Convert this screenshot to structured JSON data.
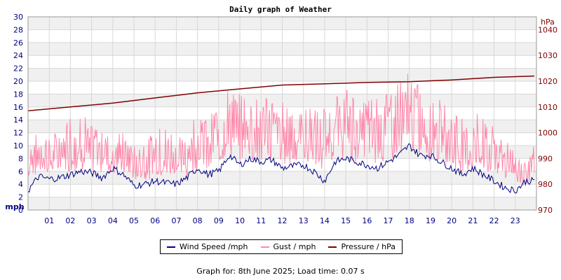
{
  "chart_data": {
    "type": "line",
    "title": "Daily graph of Weather",
    "x_ticks": [
      "01",
      "02",
      "03",
      "04",
      "05",
      "06",
      "07",
      "08",
      "09",
      "10",
      "11",
      "12",
      "13",
      "14",
      "15",
      "16",
      "17",
      "18",
      "19",
      "20",
      "21",
      "22",
      "23"
    ],
    "x_range_hours": [
      0,
      24
    ],
    "y_left": {
      "unit": "mph",
      "min": 0,
      "max": 30,
      "ticks": [
        0,
        2,
        4,
        6,
        8,
        10,
        12,
        14,
        16,
        18,
        20,
        22,
        24,
        26,
        28,
        30
      ],
      "color": "#000080"
    },
    "y_right": {
      "unit": "hPa",
      "min": 970,
      "max": 1045,
      "ticks": [
        970,
        980,
        990,
        1000,
        1010,
        1020,
        1030,
        1040
      ],
      "color": "#800000"
    },
    "grid": true,
    "legend_position": "bottom",
    "series": [
      {
        "name": "Wind Speed /mph",
        "axis": "left",
        "color": "#000080",
        "x": [
          0,
          0.5,
          1,
          1.5,
          2,
          2.5,
          3,
          3.5,
          4,
          4.5,
          5,
          5.5,
          6,
          6.5,
          7,
          7.5,
          8,
          8.5,
          9,
          9.5,
          10,
          10.5,
          11,
          11.5,
          12,
          12.5,
          13,
          13.5,
          14,
          14.5,
          15,
          15.5,
          16,
          16.5,
          17,
          17.5,
          18,
          18.5,
          19,
          19.5,
          20,
          20.5,
          21,
          21.5,
          22,
          22.5,
          23,
          23.5,
          23.9
        ],
        "values": [
          3.0,
          5.2,
          4.8,
          5.0,
          5.5,
          6.0,
          5.8,
          5.0,
          6.5,
          5.5,
          3.8,
          4.0,
          4.5,
          4.2,
          4.0,
          5.0,
          6.5,
          5.5,
          6.0,
          8.5,
          7.0,
          8.0,
          7.5,
          7.8,
          6.5,
          6.8,
          7.0,
          6.0,
          4.5,
          7.5,
          8.0,
          7.5,
          7.0,
          6.5,
          7.5,
          8.5,
          10.0,
          8.5,
          8.5,
          7.5,
          6.5,
          5.5,
          6.5,
          5.5,
          4.5,
          3.5,
          3.0,
          4.5,
          4.5
        ]
      },
      {
        "name": "Gust / mph",
        "axis": "left",
        "color": "#ff88aa",
        "x": [
          0,
          0.5,
          1,
          1.5,
          2,
          2.5,
          3,
          3.5,
          4,
          4.5,
          5,
          5.5,
          6,
          6.5,
          7,
          7.5,
          8,
          8.5,
          9,
          9.5,
          10,
          10.5,
          11,
          11.5,
          12,
          12.5,
          13,
          13.5,
          14,
          14.5,
          15,
          15.5,
          16,
          16.5,
          17,
          17.5,
          18,
          18.5,
          19,
          19.5,
          20,
          20.5,
          21,
          21.5,
          22,
          22.5,
          23,
          23.5,
          23.9
        ],
        "min": [
          4,
          5,
          5,
          5,
          5,
          5,
          5,
          5,
          5,
          5,
          4,
          4,
          4,
          4,
          4,
          4,
          5,
          5,
          6,
          7,
          6,
          6,
          6,
          6,
          6,
          6,
          6,
          6,
          5,
          6,
          7,
          6,
          6,
          6,
          6,
          7,
          7,
          7,
          6,
          6,
          5,
          5,
          5,
          5,
          4,
          4,
          4,
          3,
          5
        ],
        "max": [
          11,
          12,
          12,
          12,
          15,
          16,
          13,
          14,
          12,
          12,
          10,
          11,
          12,
          14,
          12,
          12,
          16,
          14,
          17,
          19,
          18,
          19,
          17,
          18,
          17,
          17,
          16,
          16,
          16,
          18,
          19,
          18,
          18,
          19,
          19,
          20,
          22,
          19,
          19,
          17,
          17,
          15,
          15,
          15,
          13,
          11,
          9,
          9,
          10
        ]
      },
      {
        "name": "Pressure / hPa",
        "axis": "right",
        "color": "#800000",
        "x": [
          0,
          2,
          4,
          6,
          8,
          10,
          12,
          14,
          16,
          18,
          20,
          22,
          23.9
        ],
        "values": [
          1008.5,
          1010.0,
          1011.5,
          1013.5,
          1015.5,
          1017.0,
          1018.5,
          1019.0,
          1019.5,
          1019.8,
          1020.5,
          1021.5,
          1022.0
        ]
      }
    ]
  },
  "title": "Daily graph of Weather",
  "left_axis_unit": "mph",
  "right_axis_unit": "hPa",
  "legend": {
    "wind_label": "Wind Speed /mph",
    "gust_label": "Gust / mph",
    "pressure_label": "Pressure / hPa"
  },
  "footer": "Graph for: 8th June 2025; Load time: 0.07 s"
}
